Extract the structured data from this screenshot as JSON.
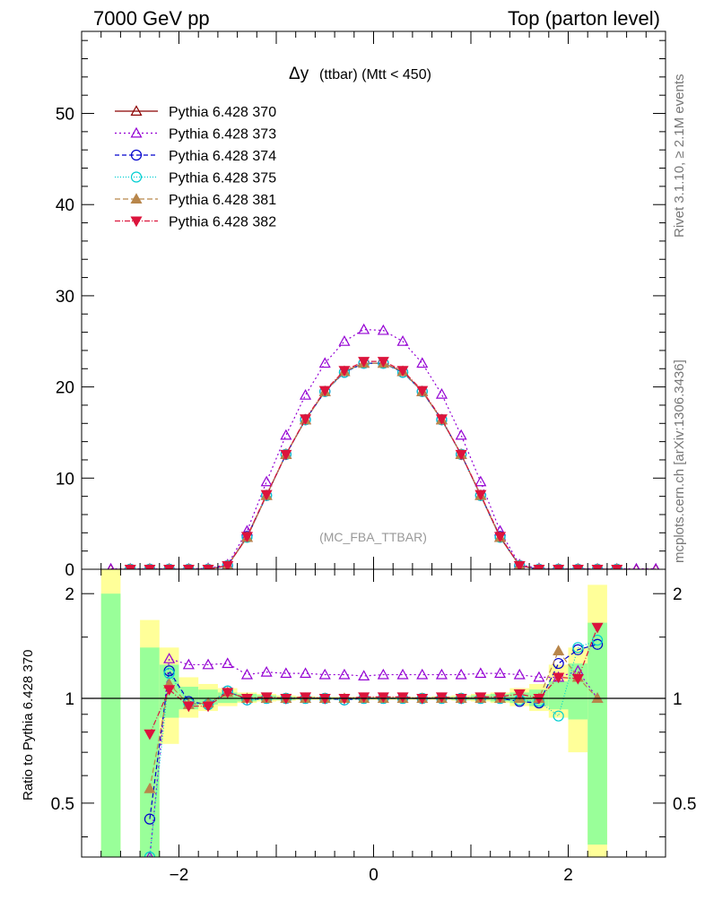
{
  "header": {
    "left": "7000 GeV pp",
    "right": "Top (parton level)"
  },
  "side": {
    "rivet": "Rivet 3.1.10, ≥ 2.1M events",
    "mcplots": "mcplots.cern.ch [arXiv:1306.3436]"
  },
  "colors": {
    "band_green": "#99ff99",
    "band_yellow": "#ffff99",
    "ref_line": "#000000"
  },
  "chart_data": [
    {
      "type": "line",
      "title": "Δy (ttbar) (Mtt < 450)",
      "title_main": "Δy",
      "title_sub": "(ttbar) (Mtt < 450)",
      "watermark": "(MC_FBA_TTBAR)",
      "xlim": [
        -3.0,
        3.0
      ],
      "ylim": [
        0,
        59
      ],
      "yticks": [
        0,
        10,
        20,
        30,
        40,
        50
      ],
      "legend_position": "top-left",
      "x": [
        -2.7,
        -2.5,
        -2.3,
        -2.1,
        -1.9,
        -1.7,
        -1.5,
        -1.3,
        -1.1,
        -0.9,
        -0.7,
        -0.5,
        -0.3,
        -0.1,
        0.1,
        0.3,
        0.5,
        0.7,
        0.9,
        1.1,
        1.3,
        1.5,
        1.7,
        1.9,
        2.1,
        2.3,
        2.5,
        2.7,
        2.9
      ],
      "series": [
        {
          "name": "Pythia 6.428 370",
          "color": "#8b0000",
          "marker": "triangle-open",
          "dash": "",
          "values": [
            0,
            0,
            0,
            0,
            0,
            0,
            0.4,
            3.5,
            8.1,
            12.6,
            16.4,
            19.5,
            21.7,
            22.6,
            22.6,
            21.7,
            19.5,
            16.4,
            12.6,
            8.1,
            3.5,
            0.4,
            0,
            0,
            0,
            0,
            0,
            0,
            0
          ]
        },
        {
          "name": "Pythia 6.428 373",
          "color": "#9400d3",
          "marker": "triangle-open",
          "dash": "2,3",
          "values": [
            0.05,
            0.05,
            0.05,
            0.05,
            0.05,
            0.1,
            0.5,
            4.2,
            9.6,
            14.7,
            19.1,
            22.6,
            25.0,
            26.3,
            26.2,
            25.0,
            22.6,
            19.2,
            14.7,
            9.6,
            4.2,
            0.5,
            0.1,
            0.05,
            0.05,
            0.05,
            0.05,
            0.05,
            0.05
          ]
        },
        {
          "name": "Pythia 6.428 374",
          "color": "#0000cd",
          "marker": "circle-open",
          "dash": "5,3",
          "values": [
            null,
            0,
            0,
            0,
            0,
            0,
            0.4,
            3.6,
            8.1,
            12.6,
            16.4,
            19.5,
            21.6,
            22.6,
            22.6,
            21.6,
            19.5,
            16.4,
            12.6,
            8.1,
            3.6,
            0.4,
            0,
            0,
            0,
            0,
            0,
            null,
            null
          ]
        },
        {
          "name": "Pythia 6.428 375",
          "color": "#00ced1",
          "marker": "circle-open",
          "dash": "1,2",
          "values": [
            null,
            0,
            0,
            0,
            0,
            0,
            0.4,
            3.5,
            8.1,
            12.6,
            16.4,
            19.5,
            21.6,
            22.6,
            22.6,
            21.6,
            19.5,
            16.4,
            12.6,
            8.1,
            3.5,
            0.4,
            0,
            0,
            0,
            0,
            0,
            null,
            null
          ]
        },
        {
          "name": "Pythia 6.428 381",
          "color": "#b8864b",
          "marker": "triangle-filled",
          "dash": "6,3",
          "values": [
            null,
            0,
            0,
            0,
            0,
            0,
            0.4,
            3.5,
            8.1,
            12.6,
            16.4,
            19.5,
            21.7,
            22.6,
            22.6,
            21.7,
            19.5,
            16.4,
            12.6,
            8.1,
            3.5,
            0.4,
            0,
            0,
            0,
            0,
            0,
            null,
            null
          ]
        },
        {
          "name": "Pythia 6.428 382",
          "color": "#dc143c",
          "marker": "triangle-down-filled",
          "dash": "6,2,1,2",
          "values": [
            null,
            0,
            0,
            0,
            0,
            0,
            0.4,
            3.6,
            8.2,
            12.6,
            16.5,
            19.6,
            21.8,
            22.8,
            22.8,
            21.8,
            19.6,
            16.5,
            12.6,
            8.2,
            3.6,
            0.4,
            0,
            0,
            0,
            0,
            0,
            null,
            null
          ]
        }
      ]
    },
    {
      "type": "line",
      "ylabel": "Ratio to Pythia 6.428 370",
      "xlim": [
        -3.0,
        3.0
      ],
      "ylim": [
        0.35,
        2.35
      ],
      "yticks": [
        0.5,
        1,
        2
      ],
      "xticks": [
        -2,
        0,
        2
      ],
      "bands": {
        "x_edges": [
          -2.8,
          -2.6,
          -2.4,
          -2.2,
          -2.0,
          -1.8,
          -1.6,
          -1.4,
          -1.2,
          -1.0,
          -0.8,
          -0.6,
          -0.4,
          -0.2,
          0,
          0.2,
          0.4,
          0.6,
          0.8,
          1.0,
          1.2,
          1.4,
          1.6,
          1.8,
          2.0,
          2.2,
          2.4
        ],
        "yellow_low": [
          0.35,
          null,
          0.35,
          0.74,
          0.88,
          0.92,
          0.95,
          0.97,
          0.98,
          0.985,
          0.99,
          0.99,
          0.99,
          0.99,
          0.99,
          0.99,
          0.99,
          0.99,
          0.985,
          0.98,
          0.97,
          0.95,
          0.92,
          0.88,
          0.7,
          0.35
        ],
        "yellow_high": [
          2.35,
          null,
          1.68,
          1.4,
          1.15,
          1.1,
          1.07,
          1.04,
          1.03,
          1.02,
          1.015,
          1.01,
          1.01,
          1.01,
          1.01,
          1.01,
          1.01,
          1.015,
          1.02,
          1.03,
          1.04,
          1.07,
          1.1,
          1.25,
          1.4,
          2.12
        ],
        "green_low": [
          0.35,
          null,
          0.35,
          0.88,
          0.93,
          0.96,
          0.97,
          0.98,
          0.99,
          0.99,
          0.995,
          0.995,
          0.995,
          0.995,
          0.995,
          0.995,
          0.995,
          0.995,
          0.99,
          0.99,
          0.98,
          0.97,
          0.95,
          0.93,
          0.87,
          0.38
        ],
        "green_high": [
          2.0,
          null,
          1.4,
          1.25,
          1.08,
          1.06,
          1.04,
          1.03,
          1.02,
          1.01,
          1.01,
          1.005,
          1.005,
          1.005,
          1.005,
          1.005,
          1.005,
          1.01,
          1.01,
          1.02,
          1.03,
          1.04,
          1.06,
          1.12,
          1.26,
          1.65
        ]
      },
      "x": [
        -2.3,
        -2.1,
        -1.9,
        -1.7,
        -1.5,
        -1.3,
        -1.1,
        -0.9,
        -0.7,
        -0.5,
        -0.3,
        -0.1,
        0.1,
        0.3,
        0.5,
        0.7,
        0.9,
        1.1,
        1.3,
        1.5,
        1.7,
        1.9,
        2.1,
        2.3
      ],
      "series": [
        {
          "name": "Pythia 6.428 373",
          "color": "#9400d3",
          "marker": "triangle-open",
          "dash": "2,3",
          "values": [
            0.35,
            1.3,
            1.25,
            1.25,
            1.26,
            1.17,
            1.19,
            1.18,
            1.18,
            1.17,
            1.17,
            1.16,
            1.17,
            1.17,
            1.17,
            1.17,
            1.17,
            1.18,
            1.18,
            1.17,
            1.15,
            1.15,
            1.2,
            1.0
          ]
        },
        {
          "name": "Pythia 6.428 374",
          "color": "#0000cd",
          "marker": "circle-open",
          "dash": "5,3",
          "values": [
            0.45,
            1.2,
            0.98,
            0.96,
            1.05,
            0.99,
            1.0,
            1.0,
            1.0,
            1.0,
            0.99,
            1.0,
            1.0,
            1.0,
            1.0,
            1.0,
            1.0,
            1.0,
            1.0,
            0.98,
            0.97,
            1.26,
            1.38,
            1.43
          ]
        },
        {
          "name": "Pythia 6.428 375",
          "color": "#00ced1",
          "marker": "circle-open",
          "dash": "1,2",
          "values": [
            0.35,
            1.18,
            0.97,
            0.96,
            1.05,
            0.99,
            1.0,
            1.0,
            1.0,
            1.0,
            0.99,
            1.0,
            1.0,
            1.0,
            1.0,
            1.0,
            1.0,
            1.0,
            1.0,
            0.99,
            0.98,
            0.89,
            1.4,
            1.47
          ]
        },
        {
          "name": "Pythia 6.428 381",
          "color": "#b8864b",
          "marker": "triangle-filled",
          "dash": "6,3",
          "values": [
            0.55,
            1.1,
            0.96,
            0.97,
            1.04,
            1.0,
            1.0,
            1.0,
            1.0,
            1.0,
            1.0,
            1.0,
            1.0,
            1.0,
            1.0,
            1.0,
            1.0,
            1.0,
            1.0,
            1.0,
            1.0,
            1.37,
            1.15,
            1.0
          ]
        },
        {
          "name": "Pythia 6.428 382",
          "color": "#dc143c",
          "marker": "triangle-down-filled",
          "dash": "6,2,1,2",
          "values": [
            0.79,
            1.06,
            0.95,
            0.95,
            1.04,
            1.0,
            1.01,
            1.0,
            1.01,
            1.0,
            1.0,
            1.01,
            1.01,
            1.01,
            1.0,
            1.01,
            1.0,
            1.01,
            1.01,
            1.03,
            1.0,
            1.15,
            1.14,
            1.6
          ]
        }
      ]
    }
  ]
}
